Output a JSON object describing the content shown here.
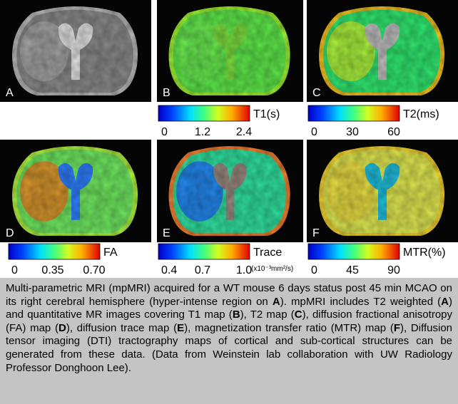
{
  "panels": [
    {
      "label": "A"
    },
    {
      "label": "B"
    },
    {
      "label": "C"
    },
    {
      "label": "D"
    },
    {
      "label": "E"
    },
    {
      "label": "F"
    }
  ],
  "colorbars": [
    {
      "title": "T1(s)",
      "ticks": [
        "0",
        "1.2",
        "2.4"
      ]
    },
    {
      "title": "T2(ms)",
      "ticks": [
        "0",
        "30",
        "60"
      ]
    },
    {
      "title": "FA",
      "ticks": [
        "0",
        "0.35",
        "0.70"
      ]
    },
    {
      "title": "Trace",
      "unit": "(x10⁻³mm²/s)",
      "ticks": [
        "0.4",
        "0.7",
        "1.0"
      ]
    },
    {
      "title": "MTR(%)",
      "ticks": [
        "0",
        "45",
        "90"
      ]
    }
  ],
  "caption": [
    "Multi-parametric MRI (mpMRI) acquired for a WT mouse 6 days status post 45 min MCAO on its right cerebral hemisphere (hyper-intense region on ",
    "A",
    "). mpMRI includes T2 weighted (",
    "A",
    ") and quantitative MR images covering T1 map (",
    "B",
    "), T2 map (",
    "C",
    "), diffusion fractional anisotropy (FA) map (",
    "D",
    "), diffusion trace map (",
    "E",
    "), magnetization transfer ratio (MTR) map (",
    "F",
    "), Diffusion tensor imaging (DTI) tractography maps of cortical and sub-cortical structures can be generated from these data. (Data from Weinstein lab collaboration with UW Radiology Professor Donghoon Lee)."
  ]
}
